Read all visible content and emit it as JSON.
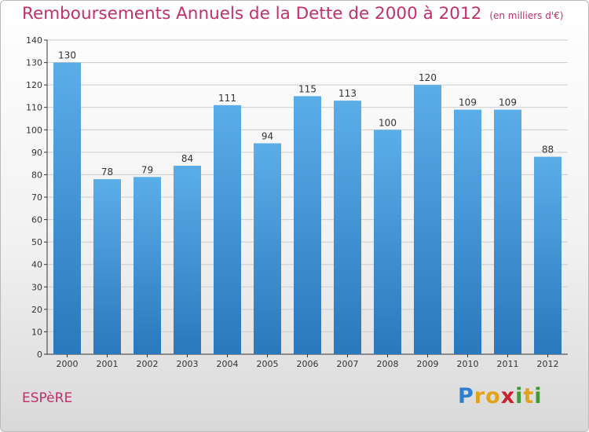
{
  "chart_data": {
    "type": "bar",
    "title": "Remboursements Annuels de la Dette de 2000 à 2012",
    "unit_note": "(en milliers d'€)",
    "xlabel": "",
    "ylabel": "",
    "categories": [
      "2000",
      "2001",
      "2002",
      "2003",
      "2004",
      "2005",
      "2006",
      "2007",
      "2008",
      "2009",
      "2010",
      "2011",
      "2012"
    ],
    "values": [
      130,
      78,
      79,
      84,
      111,
      94,
      115,
      113,
      100,
      120,
      109,
      109,
      88
    ],
    "ylim": [
      0,
      140
    ],
    "yticks": [
      0,
      10,
      20,
      30,
      40,
      50,
      60,
      70,
      80,
      90,
      100,
      110,
      120,
      130,
      140
    ],
    "grid": true,
    "legend": "none",
    "bar_color": "#3f94d6"
  },
  "footer": {
    "commune": "ESPèRE",
    "brand_letters": [
      "P",
      "r",
      "o",
      "x",
      "i",
      "t",
      "i"
    ],
    "brand_colors": [
      "#2f7fd1",
      "#e2a21a",
      "#e2a21a",
      "#c8222c",
      "#3e9a35",
      "#e2a21a",
      "#3e9a35"
    ]
  },
  "colors": {
    "title": "#c0306b",
    "axis": "#333333",
    "grid": "#cccccc"
  }
}
